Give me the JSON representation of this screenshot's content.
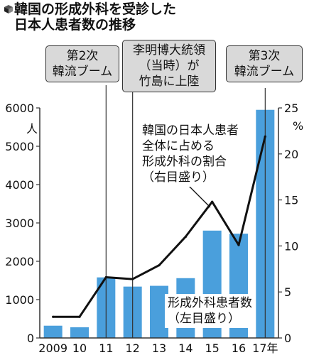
{
  "title_line1": "韓国の形成外科を受診した",
  "title_line2": "日本人患者数の推移",
  "callouts": [
    {
      "text": "第2次\n韓流ブーム"
    },
    {
      "text": "李明博大統領\n（当時）が\n竹島に上陸"
    },
    {
      "text": "第3次\n韓流ブーム"
    }
  ],
  "notes": {
    "ratio_label": "韓国の日本人患者\n全体に占める\n形成外科の割合\n（右目盛り）",
    "count_label": "形成外科患者数\n（左目盛り）"
  },
  "left_unit": "人",
  "right_unit": "%",
  "colors": {
    "bar": "#4a9fdc",
    "line": "#111111",
    "callout_bg": "#d9d9d9"
  },
  "chart_data": {
    "type": "bar+line",
    "categories": [
      "2009",
      "10",
      "11",
      "12",
      "13",
      "14",
      "15",
      "16",
      "17年"
    ],
    "series": [
      {
        "name": "形成外科患者数（左目盛り）",
        "type": "bar",
        "axis": "left",
        "values": [
          320,
          280,
          1580,
          1340,
          1360,
          1560,
          2800,
          2720,
          5950
        ]
      },
      {
        "name": "韓国の日本人患者全体に占める形成外科の割合（右目盛り）",
        "type": "line",
        "axis": "right",
        "values": [
          2.3,
          2.3,
          6.6,
          6.4,
          7.9,
          11.0,
          14.8,
          10.1,
          21.9
        ]
      }
    ],
    "left_axis": {
      "ticks": [
        0,
        1000,
        2000,
        3000,
        4000,
        5000,
        6000
      ],
      "ylim": [
        0,
        6000
      ]
    },
    "right_axis": {
      "ticks": [
        0,
        5,
        10,
        15,
        20,
        25
      ],
      "ylim": [
        0,
        25
      ]
    }
  }
}
